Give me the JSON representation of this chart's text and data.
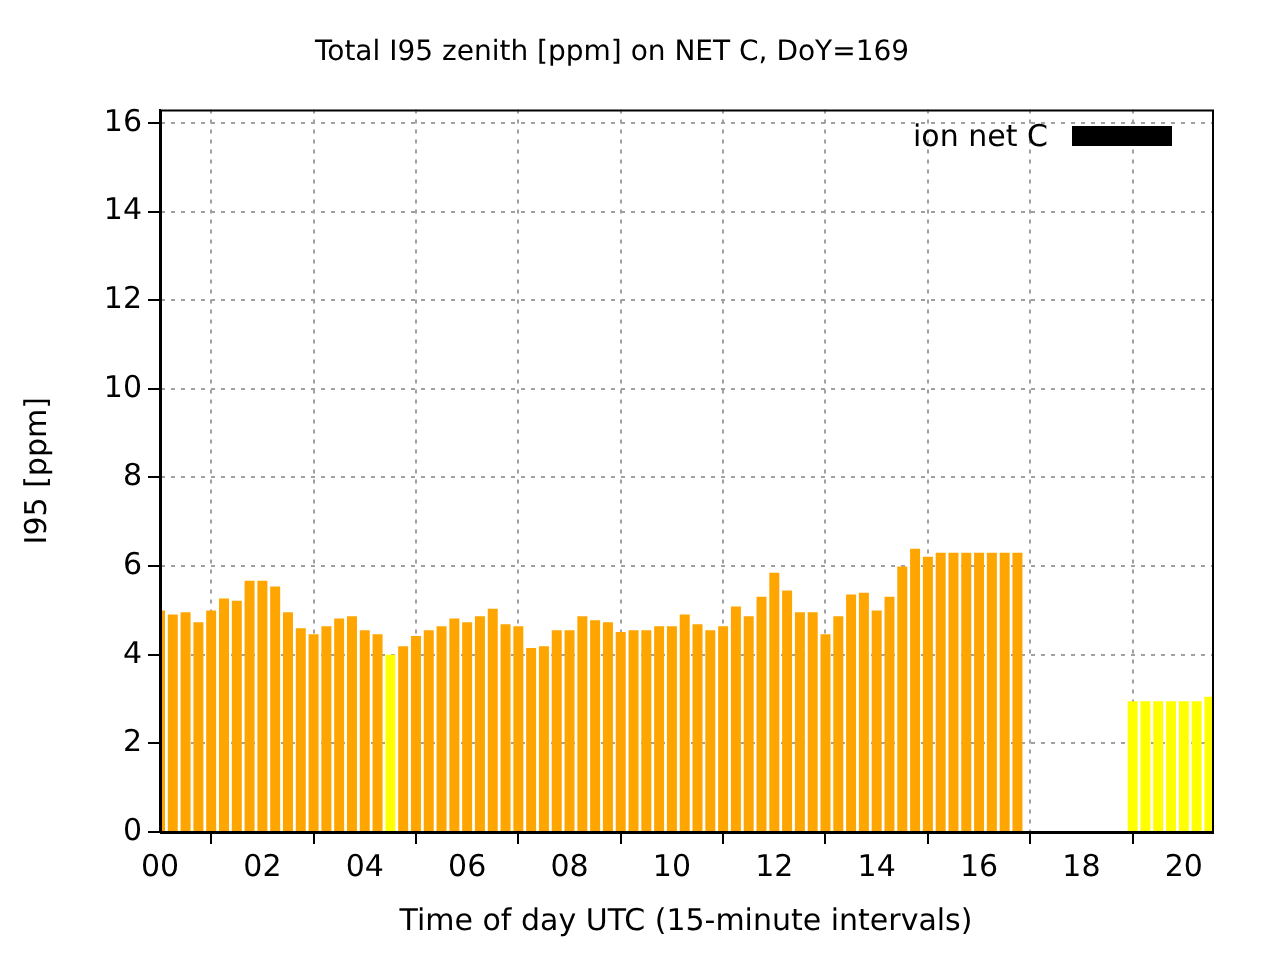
{
  "chart_data": {
    "type": "bar",
    "title": "Total I95 zenith [ppm] on NET C, DoY=169",
    "xlabel": "Time of day UTC (15-minute intervals)",
    "ylabel": "I95 [ppm]",
    "x": [
      0,
      0.25,
      0.5,
      0.75,
      1,
      1.25,
      1.5,
      1.75,
      2,
      2.25,
      2.5,
      2.75,
      3,
      3.25,
      3.5,
      3.75,
      4,
      4.25,
      4.5,
      4.75,
      5,
      5.25,
      5.5,
      5.75,
      6,
      6.25,
      6.5,
      6.75,
      7,
      7.25,
      7.5,
      7.75,
      8,
      8.25,
      8.5,
      8.75,
      9,
      9.25,
      9.5,
      9.75,
      10,
      10.25,
      10.5,
      10.75,
      11,
      11.25,
      11.5,
      11.75,
      12,
      12.25,
      12.5,
      12.75,
      13,
      13.25,
      13.5,
      13.75,
      14,
      14.25,
      14.5,
      14.75,
      15,
      15.25,
      15.5,
      15.75,
      16,
      16.25,
      16.5,
      16.75,
      19,
      19.25,
      19.5,
      19.75,
      20,
      20.25,
      20.5
    ],
    "series": [
      {
        "name": "ion net C",
        "color": "#000000",
        "values": [
          5.0,
          4.91,
          4.96,
          4.73,
          5.0,
          5.27,
          5.22,
          5.67,
          5.67,
          5.54,
          4.96,
          4.6,
          4.46,
          4.64,
          4.82,
          4.87,
          4.55,
          4.46,
          4.0,
          4.19,
          4.42,
          4.55,
          4.64,
          4.82,
          4.73,
          4.87,
          5.04,
          4.69,
          4.64,
          4.15,
          4.19,
          4.55,
          4.55,
          4.87,
          4.78,
          4.73,
          4.51,
          4.55,
          4.55,
          4.64,
          4.64,
          4.91,
          4.69,
          4.55,
          4.64,
          5.09,
          4.87,
          5.31,
          5.85,
          5.45,
          4.96,
          4.96,
          4.46,
          4.87,
          5.36,
          5.4,
          5.0,
          5.31,
          5.99,
          6.39,
          6.21,
          6.3,
          6.3,
          6.3,
          6.3,
          6.3,
          6.3,
          6.3,
          2.95,
          2.95,
          2.95,
          2.95,
          2.95,
          2.95,
          3.05
        ],
        "colors": [
          "#ffa500",
          "#ffa500",
          "#ffa500",
          "#ffa500",
          "#ffa500",
          "#ffa500",
          "#ffa500",
          "#ffa500",
          "#ffa500",
          "#ffa500",
          "#ffa500",
          "#ffa500",
          "#ffa500",
          "#ffa500",
          "#ffa500",
          "#ffa500",
          "#ffa500",
          "#ffa500",
          "#ffff00",
          "#ffa500",
          "#ffa500",
          "#ffa500",
          "#ffa500",
          "#ffa500",
          "#ffa500",
          "#ffa500",
          "#ffa500",
          "#ffa500",
          "#ffa500",
          "#ffa500",
          "#ffa500",
          "#ffa500",
          "#ffa500",
          "#ffa500",
          "#ffa500",
          "#ffa500",
          "#ffa500",
          "#ffa500",
          "#ffa500",
          "#ffa500",
          "#ffa500",
          "#ffa500",
          "#ffa500",
          "#ffa500",
          "#ffa500",
          "#ffa500",
          "#ffa500",
          "#ffa500",
          "#ffa500",
          "#ffa500",
          "#ffa500",
          "#ffa500",
          "#ffa500",
          "#ffa500",
          "#ffa500",
          "#ffa500",
          "#ffa500",
          "#ffa500",
          "#ffa500",
          "#ffa500",
          "#ffa500",
          "#ffa500",
          "#ffa500",
          "#ffa500",
          "#ffa500",
          "#ffa500",
          "#ffa500",
          "#ffa500",
          "#ffff00",
          "#ffff00",
          "#ffff00",
          "#ffff00",
          "#ffff00",
          "#ffff00",
          "#ffff00"
        ]
      }
    ],
    "xlim": [
      0,
      20.55
    ],
    "xticks": [
      {
        "value": 0,
        "label": "00"
      },
      {
        "value": 2,
        "label": "02"
      },
      {
        "value": 4,
        "label": "04"
      },
      {
        "value": 6,
        "label": "06"
      },
      {
        "value": 8,
        "label": "08"
      },
      {
        "value": 10,
        "label": "10"
      },
      {
        "value": 12,
        "label": "12"
      },
      {
        "value": 14,
        "label": "14"
      },
      {
        "value": 16,
        "label": "16"
      },
      {
        "value": 18,
        "label": "18"
      },
      {
        "value": 20,
        "label": "20"
      }
    ],
    "ylim": [
      0,
      16.3
    ],
    "yticks": [
      0,
      2,
      4,
      6,
      8,
      10,
      12,
      14,
      16
    ],
    "grid": true,
    "legend": "top right"
  }
}
